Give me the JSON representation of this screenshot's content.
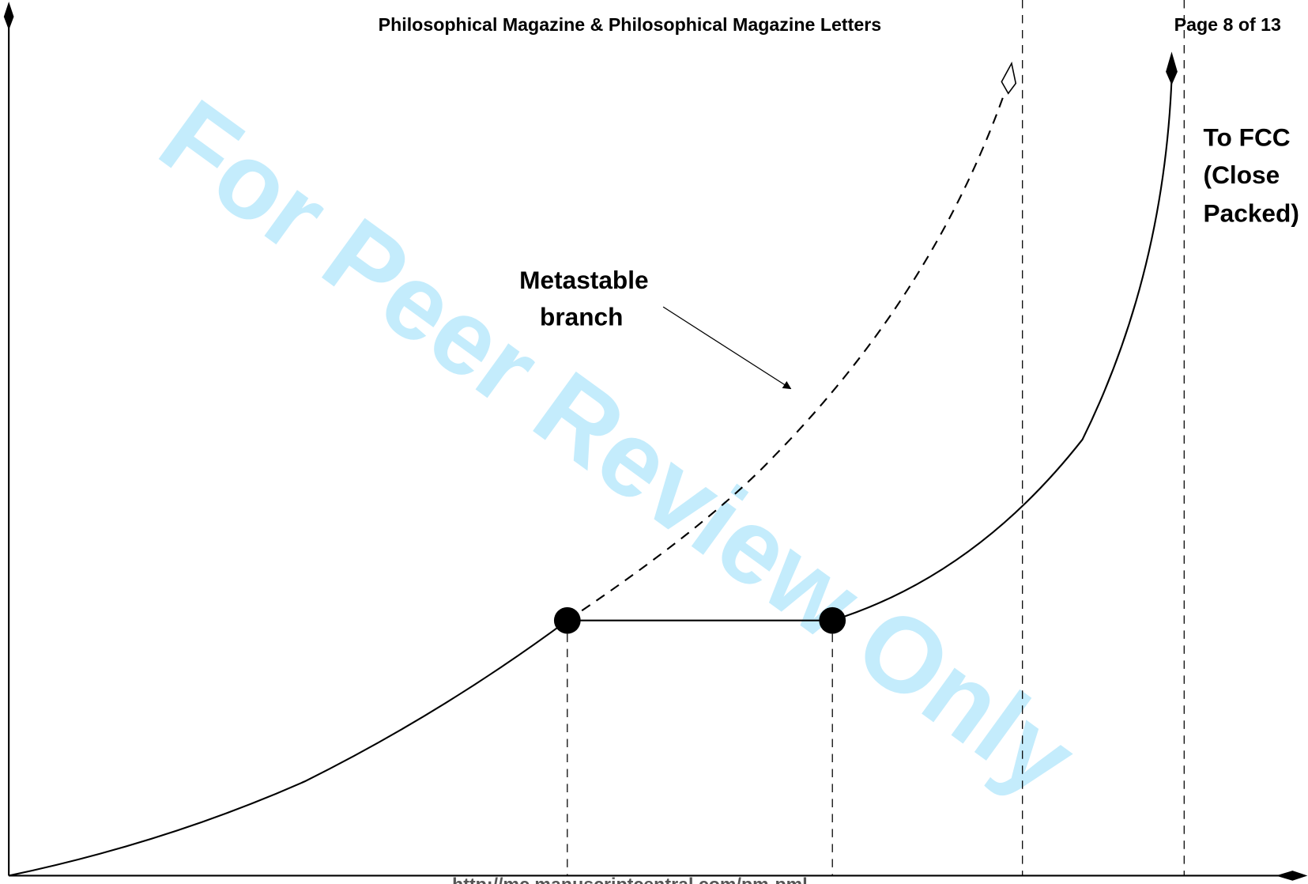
{
  "header": {
    "title": "Philosophical Magazine & Philosophical Magazine Letters",
    "page": "Page 8 of 13"
  },
  "labels": {
    "fcc": [
      "To FCC",
      "(Close",
      "Packed)"
    ],
    "metastable": [
      "Metastable",
      "branch"
    ]
  },
  "watermark": "For Peer Review Only",
  "footer": "http://mc.manuscriptcentral.com/pm-pml"
}
